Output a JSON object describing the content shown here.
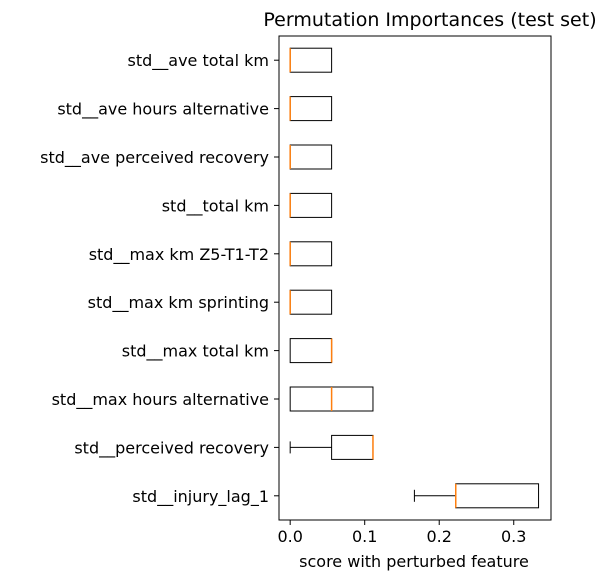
{
  "chart_data": {
    "type": "boxplot",
    "orientation": "horizontal",
    "title": "Permutation Importances (test set)",
    "xlabel": "score with perturbed feature",
    "ylabel": "",
    "xlim": [
      -0.015,
      0.35
    ],
    "xticks": [
      0.0,
      0.1,
      0.2,
      0.3
    ],
    "xtick_labels": [
      "0.0",
      "0.1",
      "0.2",
      "0.3"
    ],
    "grid": false,
    "box_color": "#000000",
    "median_color": "#ff7f0e",
    "categories": [
      "std__ave total km",
      "std__ave hours alternative",
      "std__ave perceived recovery",
      "std__total km",
      "std__max km Z5-T1-T2",
      "std__max km sprinting",
      "std__max total km",
      "std__max hours alternative",
      "std__perceived recovery",
      "std__injury_lag_1"
    ],
    "boxes": [
      {
        "whislo": 0.0,
        "q1": 0.0,
        "med": 0.0,
        "q3": 0.0556,
        "whishi": 0.0556
      },
      {
        "whislo": 0.0,
        "q1": 0.0,
        "med": 0.0,
        "q3": 0.0556,
        "whishi": 0.0556
      },
      {
        "whislo": 0.0,
        "q1": 0.0,
        "med": 0.0,
        "q3": 0.0556,
        "whishi": 0.0556
      },
      {
        "whislo": 0.0,
        "q1": 0.0,
        "med": 0.0,
        "q3": 0.0556,
        "whishi": 0.0556
      },
      {
        "whislo": 0.0,
        "q1": 0.0,
        "med": 0.0,
        "q3": 0.0556,
        "whishi": 0.0556
      },
      {
        "whislo": 0.0,
        "q1": 0.0,
        "med": 0.0,
        "q3": 0.0556,
        "whishi": 0.0556
      },
      {
        "whislo": 0.0,
        "q1": 0.0,
        "med": 0.0556,
        "q3": 0.0556,
        "whishi": 0.0556
      },
      {
        "whislo": 0.0,
        "q1": 0.0,
        "med": 0.0556,
        "q3": 0.1111,
        "whishi": 0.1111
      },
      {
        "whislo": 0.0,
        "q1": 0.0556,
        "med": 0.1111,
        "q3": 0.1111,
        "whishi": 0.1111
      },
      {
        "whislo": 0.1667,
        "q1": 0.2222,
        "med": 0.2222,
        "q3": 0.3333,
        "whishi": 0.3333
      }
    ]
  }
}
